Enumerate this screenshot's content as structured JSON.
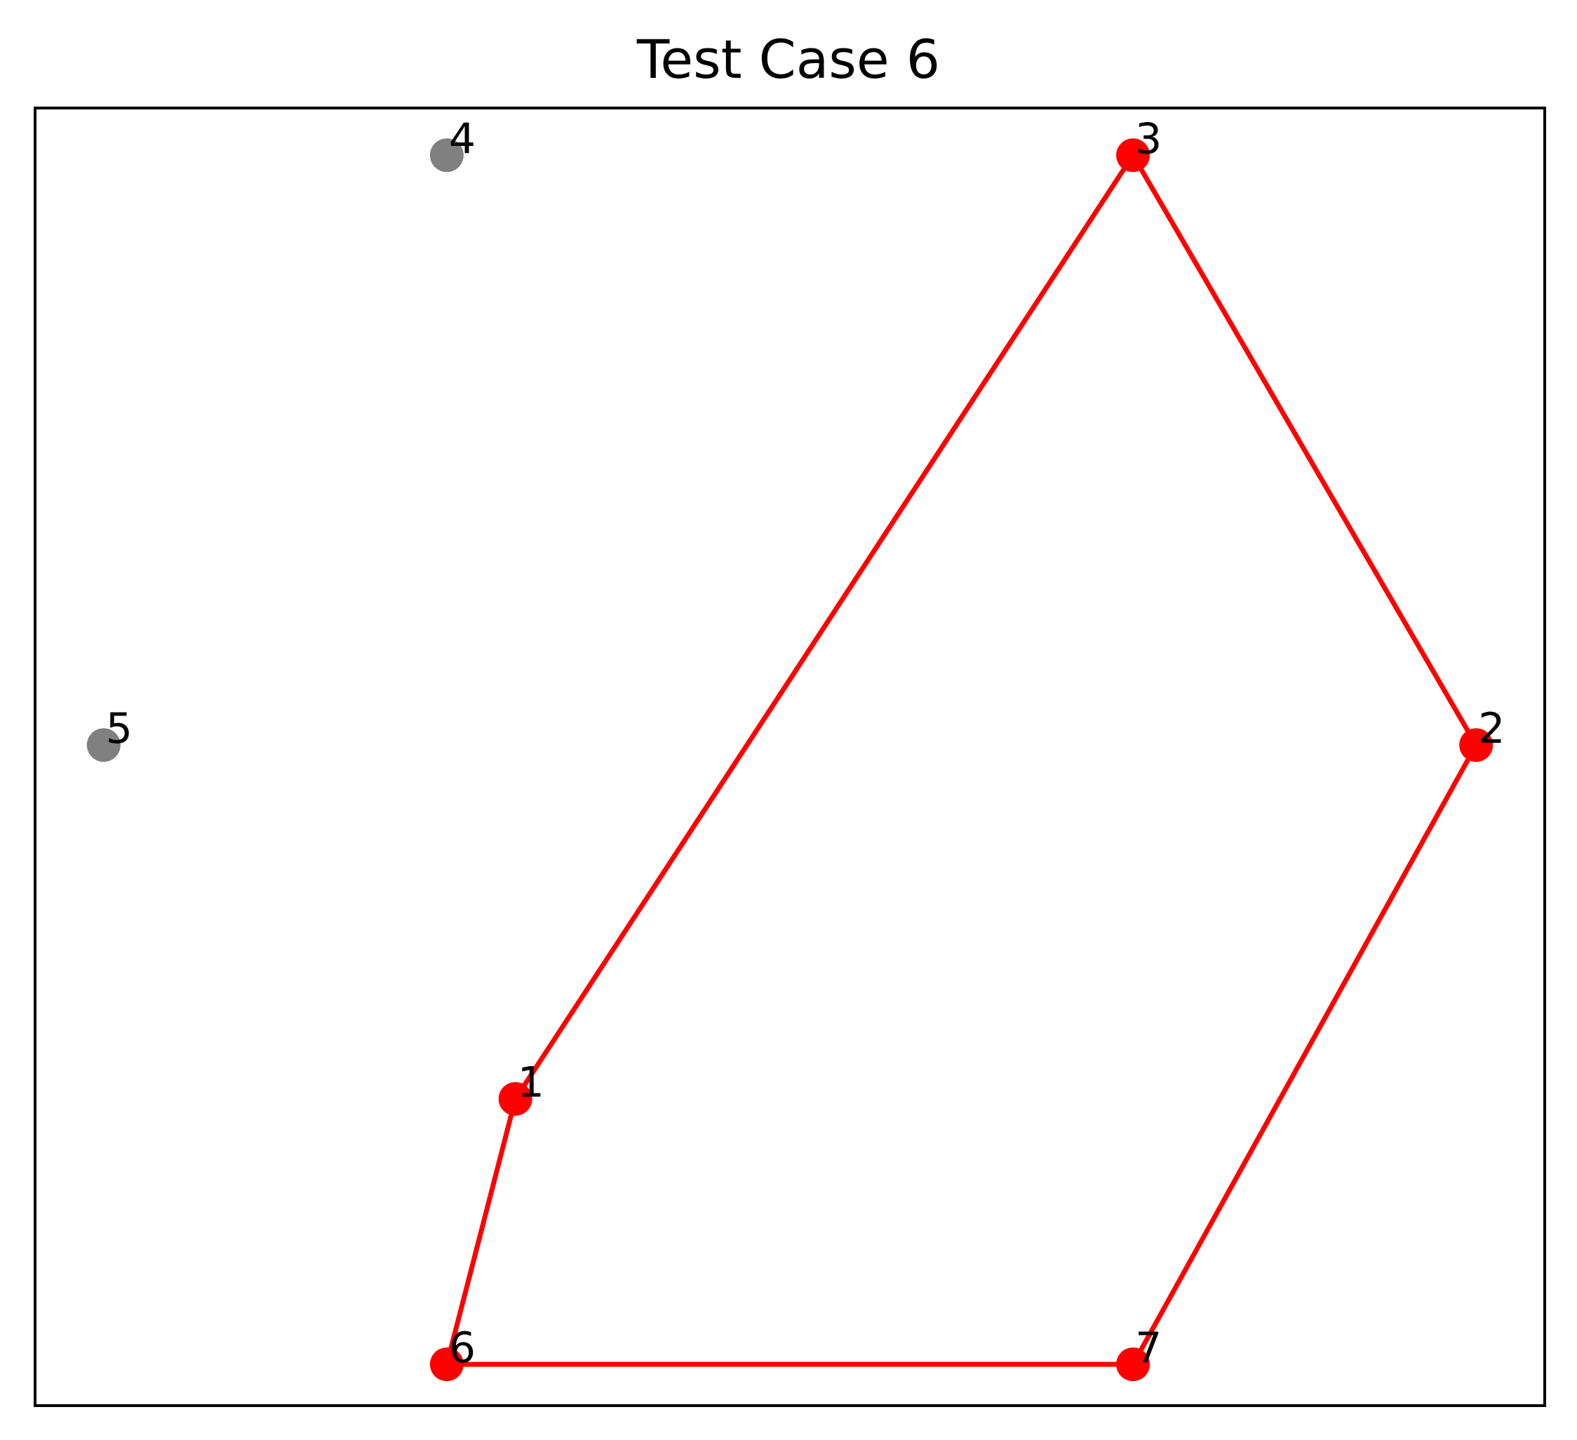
{
  "chart_data": {
    "type": "scatter",
    "title": "Test Case 6",
    "xlabel": "",
    "ylabel": "",
    "xlim": [
      -1.5,
      20.5
    ],
    "ylim": [
      -1.2,
      20.8
    ],
    "grid": false,
    "axis_ticks": false,
    "points": [
      {
        "label": "1",
        "x": 5.5,
        "y": 4.0,
        "on_hull": true
      },
      {
        "label": "2",
        "x": 19.5,
        "y": 10.0,
        "on_hull": true
      },
      {
        "label": "3",
        "x": 14.5,
        "y": 20.0,
        "on_hull": true
      },
      {
        "label": "4",
        "x": 4.5,
        "y": 20.0,
        "on_hull": false
      },
      {
        "label": "5",
        "x": -0.5,
        "y": 10.0,
        "on_hull": false
      },
      {
        "label": "6",
        "x": 4.5,
        "y": -0.5,
        "on_hull": true
      },
      {
        "label": "7",
        "x": 14.5,
        "y": -0.5,
        "on_hull": true
      }
    ],
    "polygon_order": [
      "6",
      "7",
      "2",
      "3",
      "1",
      "6"
    ],
    "colors": {
      "hull": "#ff0000",
      "other": "#808080",
      "frame": "#000000",
      "text": "#000000"
    }
  }
}
